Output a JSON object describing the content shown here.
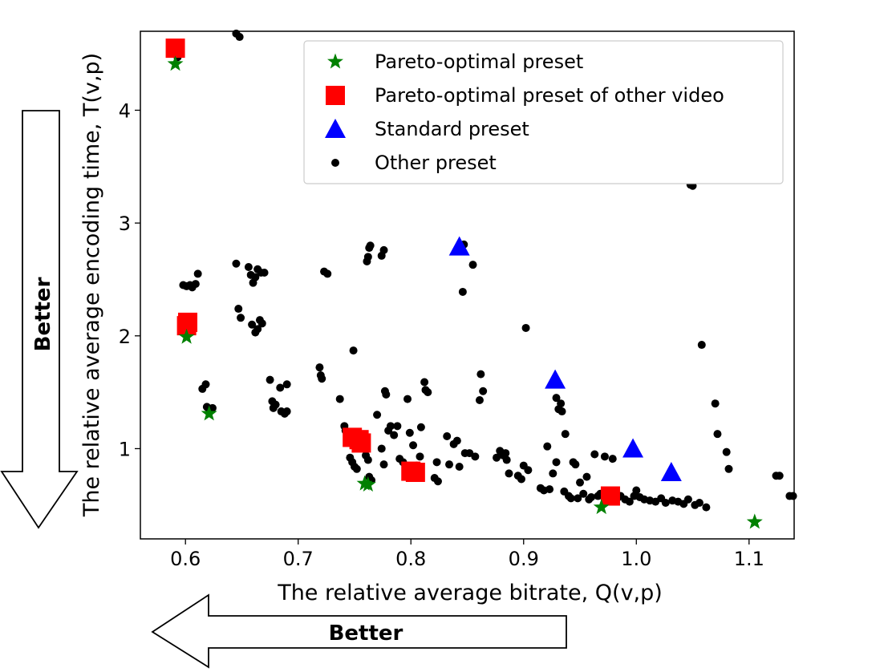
{
  "chart_data": {
    "type": "scatter",
    "xlabel": "The relative average bitrate, Q(v,p)",
    "ylabel": "The relative average encoding time, T(v,p)",
    "xlim": [
      0.56,
      1.14
    ],
    "ylim": [
      0.2,
      4.7
    ],
    "xticks": [
      0.6,
      0.7,
      0.8,
      0.9,
      1.0,
      1.1
    ],
    "yticks": [
      1,
      2,
      3,
      4
    ],
    "legend_position": "top-right",
    "grid": false,
    "better_label": "Better",
    "series": [
      {
        "name": "Pareto-optimal preset",
        "marker": "star",
        "color": "#008000",
        "points": [
          [
            0.591,
            4.41
          ],
          [
            0.601,
            1.99
          ],
          [
            0.621,
            1.31
          ],
          [
            0.759,
            0.69
          ],
          [
            0.762,
            0.68
          ],
          [
            0.969,
            0.48
          ],
          [
            1.105,
            0.35
          ]
        ]
      },
      {
        "name": "Pareto-optimal preset of other video",
        "marker": "square",
        "color": "#ff0000",
        "points": [
          [
            0.591,
            4.55
          ],
          [
            0.602,
            2.12
          ],
          [
            0.601,
            2.09
          ],
          [
            0.748,
            1.1
          ],
          [
            0.754,
            1.08
          ],
          [
            0.756,
            1.05
          ],
          [
            0.8,
            0.8
          ],
          [
            0.804,
            0.79
          ],
          [
            0.977,
            0.58
          ]
        ]
      },
      {
        "name": "Standard preset",
        "marker": "triangle",
        "color": "#0000ff",
        "points": [
          [
            0.843,
            2.79
          ],
          [
            0.928,
            1.61
          ],
          [
            0.997,
            1.0
          ],
          [
            1.031,
            0.79
          ]
        ]
      },
      {
        "name": "Other preset",
        "marker": "dot",
        "color": "#000000",
        "points": [
          [
            0.593,
            4.47
          ],
          [
            0.645,
            4.68
          ],
          [
            0.648,
            4.65
          ],
          [
            0.598,
            2.45
          ],
          [
            0.601,
            2.44
          ],
          [
            0.604,
            2.45
          ],
          [
            0.606,
            2.43
          ],
          [
            0.609,
            2.46
          ],
          [
            0.611,
            2.55
          ],
          [
            0.602,
            2.1
          ],
          [
            0.605,
            2.08
          ],
          [
            0.615,
            1.53
          ],
          [
            0.618,
            1.57
          ],
          [
            0.619,
            1.37
          ],
          [
            0.621,
            1.35
          ],
          [
            0.624,
            1.36
          ],
          [
            0.645,
            2.64
          ],
          [
            0.647,
            2.24
          ],
          [
            0.649,
            2.16
          ],
          [
            0.656,
            2.61
          ],
          [
            0.658,
            2.54
          ],
          [
            0.66,
            2.47
          ],
          [
            0.662,
            2.52
          ],
          [
            0.664,
            2.59
          ],
          [
            0.667,
            2.56
          ],
          [
            0.67,
            2.56
          ],
          [
            0.659,
            2.1
          ],
          [
            0.662,
            2.03
          ],
          [
            0.664,
            2.06
          ],
          [
            0.666,
            2.14
          ],
          [
            0.668,
            2.11
          ],
          [
            0.675,
            1.61
          ],
          [
            0.677,
            1.42
          ],
          [
            0.678,
            1.36
          ],
          [
            0.68,
            1.39
          ],
          [
            0.684,
            1.54
          ],
          [
            0.685,
            1.33
          ],
          [
            0.688,
            1.31
          ],
          [
            0.69,
            1.33
          ],
          [
            0.69,
            1.57
          ],
          [
            0.719,
            1.72
          ],
          [
            0.72,
            1.65
          ],
          [
            0.721,
            1.62
          ],
          [
            0.723,
            2.57
          ],
          [
            0.726,
            2.55
          ],
          [
            0.737,
            1.44
          ],
          [
            0.741,
            1.2
          ],
          [
            0.742,
            1.16
          ],
          [
            0.744,
            1.12
          ],
          [
            0.746,
            0.92
          ],
          [
            0.748,
            0.88
          ],
          [
            0.75,
            0.84
          ],
          [
            0.752,
            0.82
          ],
          [
            0.749,
            1.87
          ],
          [
            0.758,
            1.0
          ],
          [
            0.76,
            0.94
          ],
          [
            0.762,
            0.9
          ],
          [
            0.763,
            0.75
          ],
          [
            0.765,
            0.72
          ],
          [
            0.761,
            2.66
          ],
          [
            0.762,
            2.7
          ],
          [
            0.763,
            2.78
          ],
          [
            0.764,
            2.8
          ],
          [
            0.774,
            2.71
          ],
          [
            0.776,
            2.76
          ],
          [
            0.77,
            1.3
          ],
          [
            0.774,
            1.0
          ],
          [
            0.776,
            0.86
          ],
          [
            0.777,
            1.51
          ],
          [
            0.778,
            1.48
          ],
          [
            0.78,
            1.16
          ],
          [
            0.782,
            1.2
          ],
          [
            0.785,
            1.12
          ],
          [
            0.788,
            1.2
          ],
          [
            0.79,
            0.91
          ],
          [
            0.793,
            0.88
          ],
          [
            0.797,
            1.44
          ],
          [
            0.799,
            1.14
          ],
          [
            0.802,
            1.03
          ],
          [
            0.805,
            0.85
          ],
          [
            0.808,
            0.93
          ],
          [
            0.809,
            1.19
          ],
          [
            0.812,
            1.59
          ],
          [
            0.813,
            1.52
          ],
          [
            0.815,
            1.5
          ],
          [
            0.821,
            0.74
          ],
          [
            0.824,
            0.71
          ],
          [
            0.823,
            0.88
          ],
          [
            0.832,
            1.11
          ],
          [
            0.834,
            0.86
          ],
          [
            0.838,
            1.04
          ],
          [
            0.841,
            1.07
          ],
          [
            0.843,
            0.84
          ],
          [
            0.846,
            2.39
          ],
          [
            0.847,
            2.81
          ],
          [
            0.848,
            0.96
          ],
          [
            0.852,
            0.96
          ],
          [
            0.855,
            2.63
          ],
          [
            0.857,
            0.93
          ],
          [
            0.861,
            1.43
          ],
          [
            0.862,
            1.66
          ],
          [
            0.864,
            1.51
          ],
          [
            0.876,
            0.92
          ],
          [
            0.879,
            0.98
          ],
          [
            0.882,
            0.94
          ],
          [
            0.884,
            0.96
          ],
          [
            0.885,
            0.9
          ],
          [
            0.887,
            0.78
          ],
          [
            0.895,
            0.76
          ],
          [
            0.898,
            0.73
          ],
          [
            0.9,
            0.85
          ],
          [
            0.902,
            2.07
          ],
          [
            0.904,
            0.81
          ],
          [
            0.915,
            0.65
          ],
          [
            0.918,
            0.63
          ],
          [
            0.921,
            1.02
          ],
          [
            0.923,
            0.64
          ],
          [
            0.926,
            0.78
          ],
          [
            0.929,
            0.88
          ],
          [
            0.929,
            1.45
          ],
          [
            0.931,
            1.35
          ],
          [
            0.933,
            1.4
          ],
          [
            0.934,
            1.33
          ],
          [
            0.936,
            0.62
          ],
          [
            0.937,
            1.13
          ],
          [
            0.94,
            0.58
          ],
          [
            0.942,
            0.56
          ],
          [
            0.944,
            0.88
          ],
          [
            0.946,
            0.86
          ],
          [
            0.948,
            0.56
          ],
          [
            0.95,
            0.7
          ],
          [
            0.953,
            0.6
          ],
          [
            0.956,
            0.75
          ],
          [
            0.958,
            0.55
          ],
          [
            0.96,
            0.57
          ],
          [
            0.963,
            0.95
          ],
          [
            0.966,
            0.58
          ],
          [
            0.968,
            0.6
          ],
          [
            0.972,
            0.93
          ],
          [
            0.974,
            0.54
          ],
          [
            0.976,
            0.62
          ],
          [
            0.979,
            0.91
          ],
          [
            0.983,
            0.56
          ],
          [
            0.986,
            0.58
          ],
          [
            0.99,
            0.55
          ],
          [
            0.994,
            0.53
          ],
          [
            0.998,
            0.58
          ],
          [
            1.0,
            0.63
          ],
          [
            1.003,
            0.57
          ],
          [
            1.007,
            0.55
          ],
          [
            1.012,
            0.54
          ],
          [
            1.017,
            0.53
          ],
          [
            1.022,
            0.56
          ],
          [
            1.026,
            0.52
          ],
          [
            1.032,
            0.54
          ],
          [
            1.037,
            0.53
          ],
          [
            1.042,
            0.51
          ],
          [
            1.046,
            0.55
          ],
          [
            1.048,
            3.34
          ],
          [
            1.05,
            3.33
          ],
          [
            1.052,
            0.5
          ],
          [
            1.056,
            0.52
          ],
          [
            1.058,
            1.92
          ],
          [
            1.062,
            0.48
          ],
          [
            1.07,
            1.4
          ],
          [
            1.072,
            1.13
          ],
          [
            1.08,
            0.97
          ],
          [
            1.082,
            0.82
          ],
          [
            1.124,
            0.76
          ],
          [
            1.127,
            0.76
          ],
          [
            1.136,
            0.58
          ],
          [
            1.139,
            0.58
          ]
        ]
      }
    ]
  }
}
